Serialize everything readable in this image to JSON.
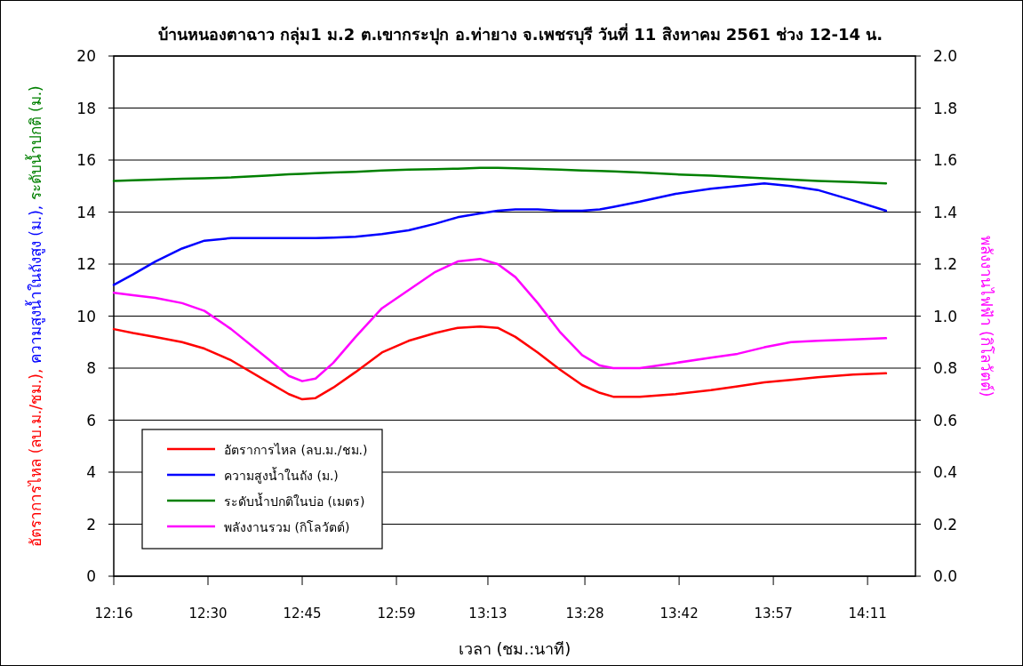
{
  "chart_data": {
    "type": "line",
    "title": "บ้านหนองตาฉาว กลุ่ม1 ม.2 ต.เขากระปุก อ.ท่ายาง จ.เพชรบุรี วันที่ 11 สิงหาคม 2561 ช่วง 12-14 น.",
    "xlabel": "เวลา (ชม.:นาที)",
    "ylabel": "อัตราการไหล (ลบ.ม./ชม.), ความสูงน้ำในถังสูง (ม.), ระดับน้ำปกติ (ม.)",
    "y2label": "พลังงานไฟฟ้า (กิโลวัตต์)",
    "x": [
      12.267,
      12.316,
      12.373,
      12.441,
      12.498,
      12.566,
      12.656,
      12.713,
      12.747,
      12.781,
      12.826,
      12.883,
      12.95,
      13.018,
      13.086,
      13.143,
      13.2,
      13.245,
      13.29,
      13.347,
      13.403,
      13.46,
      13.505,
      13.539,
      13.607,
      13.698,
      13.788,
      13.856,
      13.924,
      13.992,
      14.06,
      14.15,
      14.234
    ],
    "series": [
      {
        "name": "อัตราการไหล (ลบ.ม./ชม.)",
        "color": "#ff0000",
        "values": [
          9.5,
          9.35,
          9.2,
          9.0,
          8.75,
          8.3,
          7.5,
          7.0,
          6.8,
          6.85,
          7.25,
          7.85,
          8.6,
          9.05,
          9.35,
          9.55,
          9.6,
          9.55,
          9.2,
          8.6,
          7.95,
          7.35,
          7.05,
          6.9,
          6.9,
          7.0,
          7.15,
          7.3,
          7.45,
          7.55,
          7.65,
          7.75,
          7.8
        ]
      },
      {
        "name": "ความสูงน้ำในถัง (ม.)",
        "color": "#0000ff",
        "values": [
          11.2,
          11.6,
          12.1,
          12.6,
          12.9,
          13.0,
          13.0,
          13.0,
          13.0,
          13.0,
          13.02,
          13.05,
          13.15,
          13.3,
          13.55,
          13.8,
          13.95,
          14.05,
          14.1,
          14.1,
          14.05,
          14.05,
          14.1,
          14.2,
          14.4,
          14.7,
          14.9,
          15.0,
          15.1,
          15.0,
          14.85,
          14.45,
          14.05
        ]
      },
      {
        "name": "ระดับน้ำปกติในบ่อ (เมตร)",
        "color": "#008000",
        "values": [
          15.2,
          15.22,
          15.25,
          15.28,
          15.3,
          15.33,
          15.4,
          15.45,
          15.47,
          15.5,
          15.52,
          15.55,
          15.6,
          15.63,
          15.65,
          15.67,
          15.7,
          15.7,
          15.68,
          15.66,
          15.63,
          15.6,
          15.58,
          15.56,
          15.52,
          15.45,
          15.4,
          15.35,
          15.3,
          15.25,
          15.2,
          15.15,
          15.1
        ]
      },
      {
        "name": "พลังงานรวม (กิโลวัตต์)",
        "color": "#ff00ff",
        "axis": "y2",
        "values": [
          1.09,
          1.08,
          1.07,
          1.05,
          1.02,
          0.95,
          0.84,
          0.77,
          0.75,
          0.76,
          0.82,
          0.92,
          1.03,
          1.1,
          1.17,
          1.21,
          1.22,
          1.2,
          1.15,
          1.05,
          0.94,
          0.85,
          0.81,
          0.8,
          0.8,
          0.82,
          0.84,
          0.855,
          0.88,
          0.9,
          0.905,
          0.91,
          0.915
        ]
      }
    ],
    "xlim": [
      12.267,
      14.309
    ],
    "xticks": [
      {
        "value": 12.267,
        "label": "12:16"
      },
      {
        "value": 12.507,
        "label": "12:30"
      },
      {
        "value": 12.747,
        "label": "12:45"
      },
      {
        "value": 12.987,
        "label": "12:59"
      },
      {
        "value": 13.22,
        "label": "13:13"
      },
      {
        "value": 13.467,
        "label": "13:28"
      },
      {
        "value": 13.707,
        "label": "13:42"
      },
      {
        "value": 13.947,
        "label": "13:57"
      },
      {
        "value": 14.187,
        "label": "14:11"
      }
    ],
    "ylim": [
      0,
      20
    ],
    "yticks": [
      0,
      2,
      4,
      6,
      8,
      10,
      12,
      14,
      16,
      18,
      20
    ],
    "y2lim": [
      0,
      2
    ],
    "y2ticks": [
      {
        "value": 0,
        "label": "0.0"
      },
      {
        "value": 0.2,
        "label": "0.2"
      },
      {
        "value": 0.4,
        "label": "0.4"
      },
      {
        "value": 0.6,
        "label": "0.6"
      },
      {
        "value": 0.8,
        "label": "0.8"
      },
      {
        "value": 1.0,
        "label": "1.0"
      },
      {
        "value": 1.2,
        "label": "1.2"
      },
      {
        "value": 1.4,
        "label": "1.4"
      },
      {
        "value": 1.6,
        "label": "1.6"
      },
      {
        "value": 1.8,
        "label": "1.8"
      },
      {
        "value": 2.0,
        "label": "2.0"
      }
    ],
    "grid": "y",
    "legend": "bottom left",
    "line_style": "solid"
  }
}
